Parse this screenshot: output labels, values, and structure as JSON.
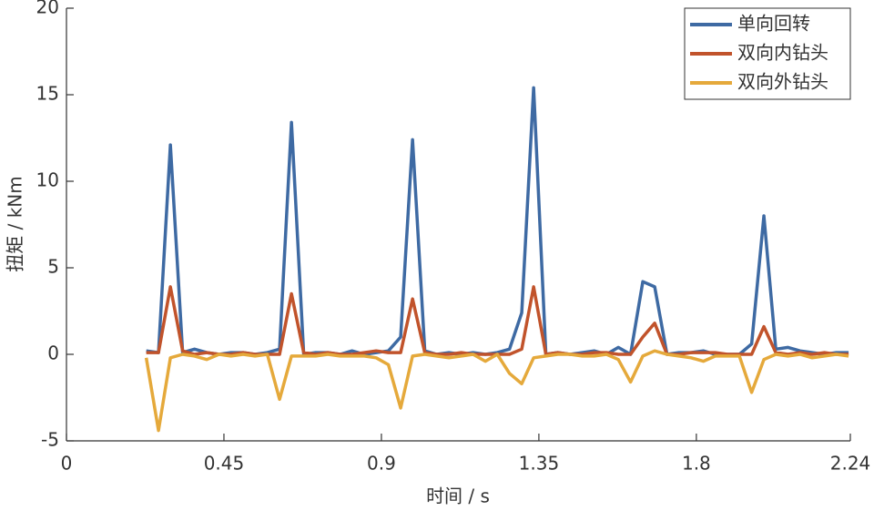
{
  "chart_data": {
    "type": "line",
    "xlabel": "时间 / s",
    "ylabel": "扭矩 / kNm",
    "x": [
      0.228,
      0.263,
      0.297,
      0.332,
      0.366,
      0.401,
      0.436,
      0.47,
      0.505,
      0.539,
      0.574,
      0.609,
      0.643,
      0.678,
      0.712,
      0.747,
      0.782,
      0.816,
      0.851,
      0.885,
      0.92,
      0.955,
      0.989,
      1.024,
      1.058,
      1.093,
      1.128,
      1.162,
      1.197,
      1.231,
      1.266,
      1.301,
      1.335,
      1.37,
      1.404,
      1.439,
      1.474,
      1.508,
      1.543,
      1.577,
      1.612,
      1.647,
      1.681,
      1.716,
      1.75,
      1.785,
      1.82,
      1.854,
      1.889,
      1.923,
      1.958,
      1.993,
      2.027,
      2.062,
      2.096,
      2.131,
      2.166,
      2.2,
      2.235
    ],
    "series": [
      {
        "name": "单向回转",
        "color": "#3e6aa3",
        "values": [
          0.2,
          0.1,
          12.1,
          0.1,
          0.3,
          0.1,
          0.0,
          0.1,
          0.1,
          0.0,
          0.1,
          0.3,
          13.4,
          0.0,
          0.1,
          0.1,
          0.0,
          0.2,
          0.0,
          0.1,
          0.2,
          1.0,
          12.4,
          0.2,
          0.0,
          0.1,
          0.0,
          0.1,
          0.0,
          0.1,
          0.3,
          2.4,
          15.4,
          0.0,
          0.1,
          0.0,
          0.1,
          0.2,
          0.0,
          0.4,
          0.0,
          4.2,
          3.9,
          0.0,
          0.1,
          0.1,
          0.2,
          0.0,
          0.0,
          0.0,
          0.6,
          8.0,
          0.3,
          0.4,
          0.2,
          0.1,
          0.0,
          0.1,
          0.1
        ]
      },
      {
        "name": "双向内钻头",
        "color": "#c1532b",
        "values": [
          0.1,
          0.1,
          3.9,
          0.2,
          0.0,
          0.1,
          0.0,
          0.0,
          0.1,
          0.0,
          0.0,
          0.0,
          3.5,
          0.1,
          0.0,
          0.1,
          0.0,
          0.0,
          0.1,
          0.2,
          0.1,
          0.1,
          3.2,
          0.1,
          0.0,
          0.0,
          0.1,
          0.0,
          0.0,
          0.0,
          0.0,
          0.3,
          3.9,
          0.0,
          0.1,
          0.0,
          0.0,
          0.1,
          0.1,
          0.0,
          0.0,
          1.0,
          1.8,
          0.0,
          0.0,
          0.1,
          0.1,
          0.1,
          0.0,
          0.0,
          0.0,
          1.6,
          0.1,
          0.0,
          0.1,
          0.0,
          0.1,
          0.0,
          0.0
        ]
      },
      {
        "name": "双向外钻头",
        "color": "#e5a93b",
        "values": [
          -0.2,
          -4.4,
          -0.2,
          0.0,
          -0.1,
          -0.3,
          0.0,
          -0.1,
          0.0,
          -0.1,
          0.0,
          -2.6,
          -0.1,
          -0.1,
          -0.1,
          0.0,
          -0.1,
          -0.1,
          -0.1,
          -0.2,
          -0.6,
          -3.1,
          -0.1,
          0.0,
          -0.1,
          -0.2,
          -0.1,
          0.0,
          -0.4,
          0.0,
          -1.1,
          -1.7,
          -0.2,
          -0.1,
          0.0,
          0.0,
          -0.1,
          -0.1,
          0.0,
          -0.3,
          -1.6,
          -0.1,
          0.2,
          0.0,
          -0.1,
          -0.2,
          -0.4,
          -0.1,
          -0.1,
          -0.1,
          -2.2,
          -0.3,
          0.0,
          -0.1,
          0.0,
          -0.2,
          -0.1,
          0.0,
          -0.1
        ]
      }
    ],
    "xlim": [
      0,
      2.24
    ],
    "xticks": [
      0,
      0.45,
      0.9,
      1.35,
      1.8,
      2.24
    ],
    "ylim": [
      -5,
      20
    ],
    "yticks": [
      -5,
      0,
      5,
      10,
      15,
      20
    ],
    "grid": false,
    "legend": "upper right"
  }
}
